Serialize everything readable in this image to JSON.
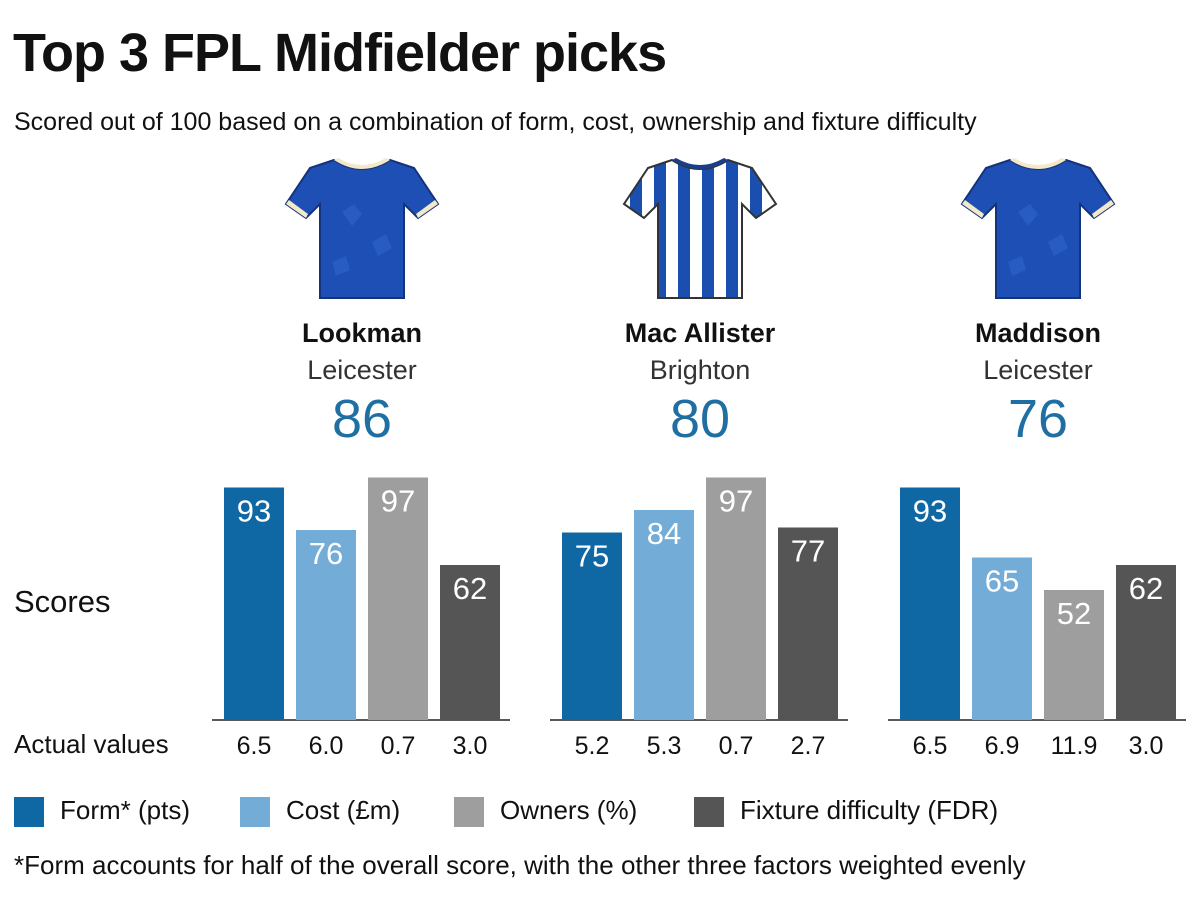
{
  "title": "Top 3 FPL Midfielder picks",
  "subtitle": "Scored out of 100 based on a combination of form, cost, ownership and fixture difficulty",
  "row_labels": {
    "scores": "Scores",
    "actual": "Actual values"
  },
  "players": [
    {
      "name": "Lookman",
      "club": "Leicester",
      "score": "86",
      "shirt": "leicester-shirt-icon"
    },
    {
      "name": "Mac Allister",
      "club": "Brighton",
      "score": "80",
      "shirt": "brighton-shirt-icon"
    },
    {
      "name": "Maddison",
      "club": "Leicester",
      "score": "76",
      "shirt": "leicester-shirt-icon"
    }
  ],
  "legend": [
    {
      "label": "Form* (pts)",
      "color": "#0f68a3"
    },
    {
      "label": "Cost (£m)",
      "color": "#74acd8"
    },
    {
      "label": "Owners (%)",
      "color": "#9e9e9e"
    },
    {
      "label": "Fixture difficulty (FDR)",
      "color": "#555555"
    }
  ],
  "footnote": "*Form accounts for half of the overall score, with the other three factors weighted evenly",
  "chart_data": {
    "type": "bar",
    "categories": [
      "Form* (pts)",
      "Cost (£m)",
      "Owners (%)",
      "Fixture difficulty (FDR)"
    ],
    "ylim": [
      0,
      100
    ],
    "groups": [
      {
        "player": "Lookman",
        "values": [
          93,
          76,
          97,
          62
        ],
        "actual": [
          "6.5",
          "6.0",
          "0.7",
          "3.0"
        ]
      },
      {
        "player": "Mac Allister",
        "values": [
          75,
          84,
          97,
          77
        ],
        "actual": [
          "5.2",
          "5.3",
          "0.7",
          "2.7"
        ]
      },
      {
        "player": "Maddison",
        "values": [
          93,
          65,
          52,
          62
        ],
        "actual": [
          "6.5",
          "6.9",
          "11.9",
          "3.0"
        ]
      }
    ],
    "colors": [
      "#0f68a3",
      "#74acd8",
      "#9e9e9e",
      "#555555"
    ]
  }
}
